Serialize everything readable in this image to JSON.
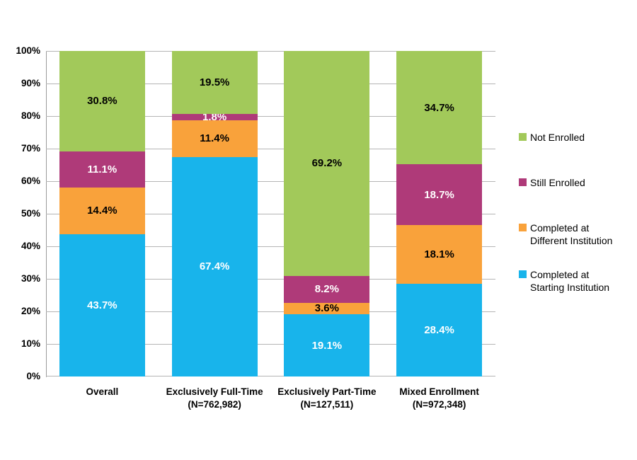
{
  "chart_data": {
    "type": "bar",
    "subtype": "stacked-100-percent-column",
    "grid": true,
    "legend_position": "right",
    "categories": [
      {
        "lines": [
          "Overall"
        ]
      },
      {
        "lines": [
          "Exclusively Full-Time",
          "(N=762,982)"
        ]
      },
      {
        "lines": [
          "Exclusively Part-Time",
          "(N=127,511)"
        ]
      },
      {
        "lines": [
          "Mixed Enrollment",
          "(N=972,348)"
        ]
      }
    ],
    "series": [
      {
        "name": "Completed at Starting Institution",
        "color": "#18B4EB",
        "label_color": "#FFFFFF",
        "values": [
          43.7,
          67.4,
          19.1,
          28.4
        ],
        "labels": [
          "43.7%",
          "67.4%",
          "19.1%",
          "28.4%"
        ]
      },
      {
        "name": "Completed at Different Institution",
        "color": "#F9A23B",
        "label_color": "#000000",
        "values": [
          14.4,
          11.4,
          3.6,
          18.1
        ],
        "labels": [
          "14.4%",
          "11.4%",
          "3.6%",
          "18.1%"
        ]
      },
      {
        "name": "Still Enrolled",
        "color": "#AF3A79",
        "label_color": "#FFFFFF",
        "values": [
          11.1,
          1.8,
          8.2,
          18.7
        ],
        "labels": [
          "11.1%",
          "1.8%",
          "8.2%",
          "18.7%"
        ]
      },
      {
        "name": "Not Enrolled",
        "color": "#A2C95A",
        "label_color": "#000000",
        "values": [
          30.8,
          19.5,
          69.2,
          34.7
        ],
        "labels": [
          "30.8%",
          "19.5%",
          "69.2%",
          "34.7%"
        ]
      }
    ],
    "y_axis": {
      "min": 0,
      "max": 100,
      "step": 10,
      "ticks": [
        "0%",
        "10%",
        "20%",
        "30%",
        "40%",
        "50%",
        "60%",
        "70%",
        "80%",
        "90%",
        "100%"
      ]
    },
    "legend": {
      "items": [
        {
          "swatch_color": "#A2C95A",
          "lines": [
            "Not Enrolled"
          ]
        },
        {
          "swatch_color": "#AF3A79",
          "lines": [
            "Still Enrolled"
          ]
        },
        {
          "swatch_color": "#F9A23B",
          "lines": [
            "Completed at",
            "Different Institution"
          ]
        },
        {
          "swatch_color": "#18B4EB",
          "lines": [
            "Completed at",
            "Starting Institution"
          ]
        }
      ]
    },
    "style_colors": {
      "gridline": "#B5B5B5",
      "axis_line": "#9B9B9B",
      "background": "#FFFFFF"
    }
  }
}
